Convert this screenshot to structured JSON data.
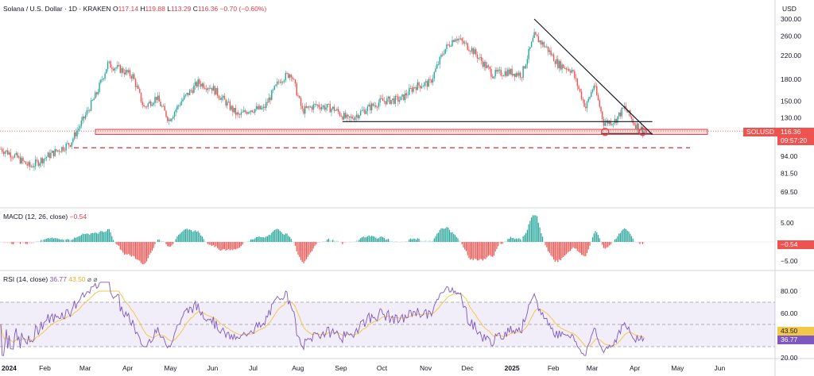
{
  "price_header": {
    "symbol_title": "Solana / U.S. Dollar · 1D · KRAKEN",
    "o_label": "O",
    "o_value": "117.14",
    "h_label": "H",
    "h_value": "119.88",
    "l_label": "L",
    "l_value": "113.29",
    "c_label": "C",
    "c_value": "116.36",
    "change": "−0.70 (−0.60%)"
  },
  "currency": "USD",
  "price_tag": {
    "symbol": "SOLUSD",
    "price": "116.36",
    "countdown": "09:57:20"
  },
  "macd_header": {
    "label": "MACD (12, 26, close)",
    "value": "−0.54"
  },
  "macd_tag": "−0.54",
  "rsi_header": {
    "label": "RSI (14, close)",
    "value1": "36.77",
    "value2": "43.50",
    "icons": "⌀ ⌀"
  },
  "rsi_tags": {
    "ma": "43.50",
    "rsi": "36.77"
  },
  "colors": {
    "up": "#26a69a",
    "down": "#ef5350",
    "rsi": "#7e57c2",
    "rsi_ma": "#f2c84b",
    "zone": "#f5c6c1"
  },
  "chart_data": [
    {
      "type": "candlestick",
      "title": "Solana / U.S. Dollar · 1D · KRAKEN",
      "scale": "log",
      "y_ticks": [
        "300.00",
        "260.00",
        "220.00",
        "180.00",
        "150.00",
        "130.00",
        "94.00",
        "81.50",
        "69.50"
      ],
      "x_ticks": [
        "2024",
        "Feb",
        "Mar",
        "Apr",
        "May",
        "Jun",
        "Jul",
        "Aug",
        "Sep",
        "Oct",
        "Nov",
        "Dec",
        "2025",
        "Feb",
        "Mar",
        "Apr",
        "May",
        "Jun"
      ],
      "close_path": [
        [
          "2024-01-01",
          100
        ],
        [
          "2024-01-10",
          95
        ],
        [
          "2024-01-22",
          86
        ],
        [
          "2024-02-05",
          95
        ],
        [
          "2024-02-20",
          105
        ],
        [
          "2024-03-01",
          130
        ],
        [
          "2024-03-10",
          160
        ],
        [
          "2024-03-18",
          205
        ],
        [
          "2024-03-28",
          195
        ],
        [
          "2024-04-05",
          185
        ],
        [
          "2024-04-13",
          142
        ],
        [
          "2024-04-22",
          155
        ],
        [
          "2024-05-01",
          128
        ],
        [
          "2024-05-10",
          150
        ],
        [
          "2024-05-22",
          175
        ],
        [
          "2024-06-01",
          168
        ],
        [
          "2024-06-10",
          150
        ],
        [
          "2024-06-20",
          132
        ],
        [
          "2024-06-28",
          140
        ],
        [
          "2024-07-08",
          140
        ],
        [
          "2024-07-20",
          180
        ],
        [
          "2024-07-28",
          190
        ],
        [
          "2024-08-05",
          138
        ],
        [
          "2024-08-15",
          145
        ],
        [
          "2024-08-28",
          140
        ],
        [
          "2024-09-07",
          128
        ],
        [
          "2024-09-20",
          140
        ],
        [
          "2024-10-01",
          150
        ],
        [
          "2024-10-15",
          152
        ],
        [
          "2024-10-25",
          170
        ],
        [
          "2024-11-05",
          175
        ],
        [
          "2024-11-15",
          230
        ],
        [
          "2024-11-23",
          258
        ],
        [
          "2024-12-05",
          232
        ],
        [
          "2024-12-20",
          188
        ],
        [
          "2024-12-31",
          192
        ],
        [
          "2025-01-10",
          188
        ],
        [
          "2025-01-19",
          260
        ],
        [
          "2025-01-28",
          235
        ],
        [
          "2025-02-05",
          205
        ],
        [
          "2025-02-15",
          195
        ],
        [
          "2025-02-25",
          142
        ],
        [
          "2025-03-03",
          172
        ],
        [
          "2025-03-10",
          125
        ],
        [
          "2025-03-18",
          127
        ],
        [
          "2025-03-25",
          142
        ],
        [
          "2025-04-01",
          124
        ],
        [
          "2025-04-08",
          116.36
        ]
      ],
      "support_zone": [
        113,
        118
      ],
      "dashed_level": 101,
      "downtrend_line": [
        [
          "2025-01-19",
          300
        ],
        [
          "2025-04-14",
          113
        ]
      ],
      "neckline": [
        [
          "2024-09-03",
          126
        ],
        [
          "2025-04-14",
          126
        ]
      ],
      "marked_lows": [
        [
          "2025-03-11",
          115.5
        ],
        [
          "2025-04-07",
          115.5
        ]
      ],
      "last_price": 116.36
    },
    {
      "type": "bar",
      "title": "MACD (12, 26, close)",
      "y_ticks": [
        "5.00",
        "−5.00"
      ],
      "current": -0.54
    },
    {
      "type": "line",
      "title": "RSI (14, close)",
      "y_ticks": [
        "80.00",
        "60.00",
        "20.00"
      ],
      "bands": [
        30,
        70
      ],
      "rsi_current": 36.77,
      "ma_current": 43.5
    }
  ]
}
